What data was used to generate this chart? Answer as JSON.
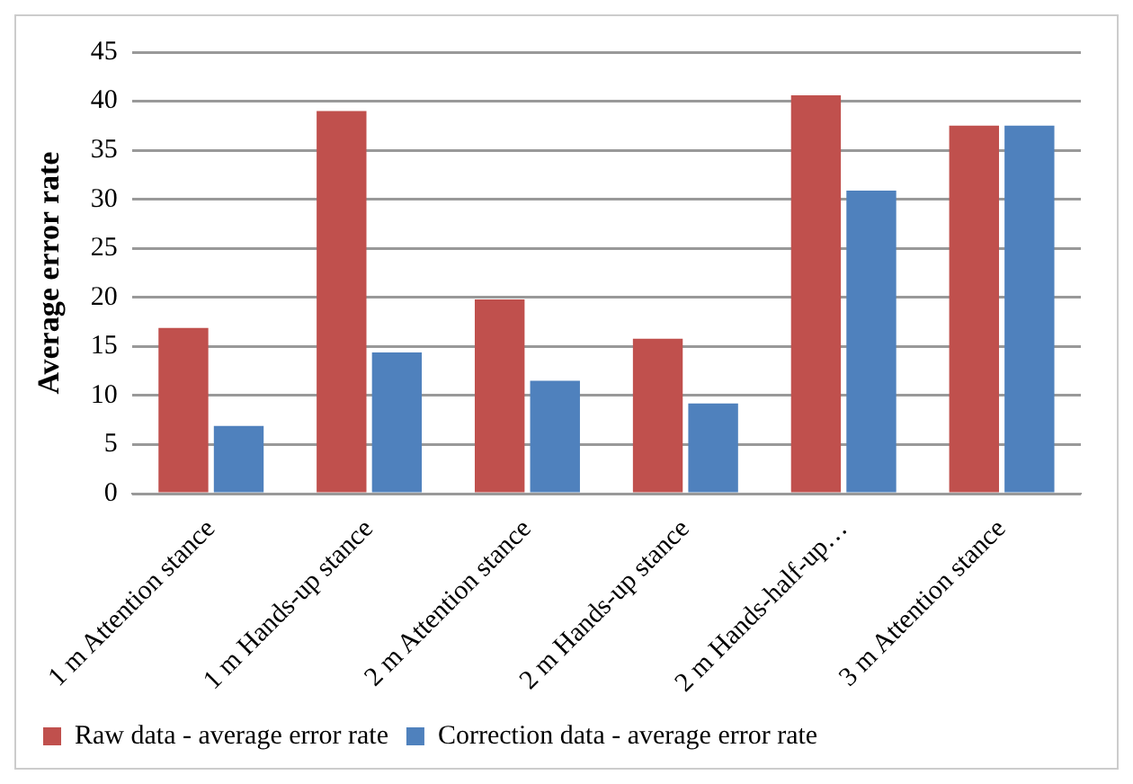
{
  "chart_data": {
    "type": "bar",
    "ylabel": "Average error rate",
    "categories": [
      "1 m Attention stance",
      "1 m Hands-up stance",
      "2 m Attention stance",
      "2 m Hands-up stance",
      "2 m Hands-half-up…",
      "3 m Attention stance"
    ],
    "series": [
      {
        "name": "Raw data - average error rate",
        "color": "#c0504d",
        "values": [
          16.9,
          39.0,
          19.8,
          15.8,
          40.6,
          37.5
        ]
      },
      {
        "name": "Correction data - average error rate",
        "color": "#4f81bd",
        "values": [
          6.9,
          14.4,
          11.5,
          9.2,
          30.9,
          37.5
        ]
      }
    ],
    "ylim": [
      0,
      45
    ],
    "yticks": [
      0,
      5,
      10,
      15,
      20,
      25,
      30,
      35,
      40,
      45
    ],
    "grid": "y",
    "legend": "bottom"
  }
}
